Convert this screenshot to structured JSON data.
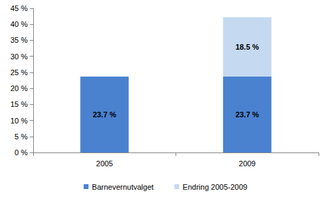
{
  "chart_data": {
    "type": "bar",
    "categories": [
      "2005",
      "2009"
    ],
    "series": [
      {
        "name": "Barnevernutvalget",
        "color": "#4a82d0",
        "values": [
          23.7,
          23.7
        ],
        "value_labels": [
          "23.7 %",
          "23.7 %"
        ]
      },
      {
        "name": "Endring 2005-2009",
        "color": "#c5d9f1",
        "values": [
          null,
          18.5
        ],
        "value_labels": [
          null,
          "18.5 %"
        ]
      }
    ],
    "stacked": true,
    "data_labels": true,
    "legend": "bottom",
    "grid": false,
    "ylim": [
      0,
      45
    ],
    "yticks": [
      {
        "value": 0,
        "label": "0 %"
      },
      {
        "value": 5,
        "label": "5 %"
      },
      {
        "value": 10,
        "label": "10 %"
      },
      {
        "value": 15,
        "label": "15 %"
      },
      {
        "value": 20,
        "label": "20 %"
      },
      {
        "value": 25,
        "label": "25 %"
      },
      {
        "value": 30,
        "label": "30 %"
      },
      {
        "value": 35,
        "label": "35 %"
      },
      {
        "value": 40,
        "label": "40 %"
      },
      {
        "value": 45,
        "label": "45 %"
      }
    ]
  }
}
